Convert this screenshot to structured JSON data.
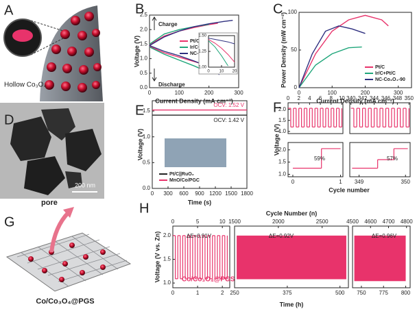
{
  "figure": {
    "A": {
      "label": "A",
      "caption": "Hollow Co₃O₄"
    },
    "D": {
      "label": "D",
      "scale_bar": "200 nm"
    },
    "G": {
      "label": "G",
      "annotation": "pore",
      "caption": "Co/Co₃O₄@PGS"
    }
  },
  "chart_data": [
    {
      "type": "line",
      "label": "B",
      "xlabel": "Current Density (mA cm⁻²)",
      "ylabel": "Voltage (V)",
      "xlim": [
        0,
        300
      ],
      "ylim": [
        0,
        2.5
      ],
      "xticks": [
        0,
        100,
        200,
        300
      ],
      "yticks": [
        {
          "value": 0,
          "label": "0.0"
        },
        0.5,
        {
          "value": 1,
          "label": "1.0"
        },
        1.5,
        {
          "value": 2,
          "label": "2.0"
        },
        2.5
      ],
      "annotations": [
        "Charge",
        "Discharge"
      ],
      "series": [
        {
          "name": "Pt/C",
          "color": "#e8336b",
          "x": [
            0,
            50,
            100,
            150,
            200,
            230,
            null,
            0,
            50,
            100,
            150,
            200,
            250,
            265
          ],
          "values": [
            1.48,
            1.78,
            1.95,
            2.07,
            2.17,
            2.22,
            null,
            1.42,
            1.2,
            1.05,
            0.9,
            0.75,
            0.6,
            0.55
          ]
        },
        {
          "name": "Ir/C+Pt/C",
          "color": "#1fa67a",
          "x": [
            0,
            50,
            100,
            150,
            200,
            null,
            0,
            50,
            100,
            150,
            195
          ],
          "values": [
            1.5,
            1.85,
            2.0,
            2.1,
            2.18,
            null,
            1.4,
            1.15,
            0.95,
            0.75,
            0.55
          ]
        },
        {
          "name": "NC-Co₃O₄-90",
          "color": "#2e2f7f",
          "x": [
            0,
            50,
            100,
            150,
            200,
            250,
            280,
            null,
            0,
            50,
            100,
            150,
            200,
            235
          ],
          "values": [
            1.45,
            1.75,
            1.95,
            2.1,
            2.2,
            2.28,
            2.32,
            null,
            1.45,
            1.25,
            1.1,
            0.92,
            0.72,
            0.45
          ]
        }
      ]
    },
    {
      "type": "line",
      "xlim": [
        0,
        20
      ],
      "ylim": [
        1.0,
        1.5
      ],
      "xticks": [
        0,
        10,
        20
      ],
      "yticks": [
        {
          "value": 1,
          "label": "1.00"
        },
        1.25,
        {
          "value": 1.5,
          "label": "1.50"
        }
      ],
      "series": [
        {
          "color": "#2e2f7f",
          "x": [
            0,
            5,
            10,
            15,
            20
          ],
          "values": [
            1.46,
            1.44,
            1.42,
            1.4,
            1.37
          ]
        },
        {
          "color": "#e8336b",
          "x": [
            0,
            5,
            10,
            15,
            20
          ],
          "values": [
            1.44,
            1.38,
            1.3,
            1.2,
            1.08
          ]
        },
        {
          "color": "#1fa67a",
          "x": [
            0,
            5,
            10,
            15
          ],
          "values": [
            1.42,
            1.32,
            1.18,
            1.02
          ]
        }
      ]
    },
    {
      "type": "line",
      "label": "C",
      "xlabel": "Current Density (mA cm⁻²)",
      "ylabel": "Power Density (mW cm⁻²)",
      "xlim": [
        0,
        340
      ],
      "ylim": [
        0,
        100
      ],
      "xticks": [
        0,
        100,
        200,
        300
      ],
      "yticks": [
        0,
        50,
        100
      ],
      "series": [
        {
          "name": "Pt/C",
          "color": "#e8336b",
          "x": [
            0,
            50,
            100,
            150,
            200,
            250,
            270
          ],
          "values": [
            0,
            45,
            75,
            90,
            96,
            90,
            82
          ]
        },
        {
          "name": "Ir/C+Pt/C",
          "color": "#1fa67a",
          "x": [
            0,
            50,
            100,
            150,
            190
          ],
          "values": [
            0,
            30,
            45,
            53,
            54
          ]
        },
        {
          "name": "NC-Co₃O₄-90",
          "color": "#2e2f7f",
          "x": [
            0,
            40,
            80,
            120,
            160,
            200
          ],
          "values": [
            0,
            45,
            75,
            82,
            78,
            72
          ]
        }
      ]
    },
    {
      "type": "line",
      "label": "E",
      "xlabel": "Time (s)",
      "ylabel": "Voltage (V)",
      "xlim": [
        0,
        1800
      ],
      "ylim": [
        0,
        1.7
      ],
      "xticks": [
        0,
        300,
        600,
        900,
        1200,
        1500,
        1800
      ],
      "yticks": [
        {
          "value": 0,
          "label": "0.0"
        },
        0.5,
        {
          "value": 1,
          "label": "1.0"
        },
        1.5
      ],
      "annotations": [
        "OCV: 1.52 V",
        "OCV: 1.42 V"
      ],
      "series": [
        {
          "name": "Pt/C||RuO₂",
          "color": "#222222",
          "x": [
            0,
            1800
          ],
          "values": [
            1.42,
            1.42
          ]
        },
        {
          "name": "MnO/Co/PGC",
          "color": "#e8336b",
          "x": [
            0,
            1800
          ],
          "values": [
            1.52,
            1.52
          ]
        }
      ]
    },
    {
      "type": "step",
      "label": "F",
      "ylabel": "Voltage (V)",
      "xlim": [
        0,
        10.2
      ],
      "ylim": [
        0.9,
        2.3
      ],
      "xticks": [
        0,
        2,
        4,
        6,
        8,
        10
      ],
      "yticks": [
        {
          "value": 1,
          "label": "1.0"
        },
        1.5,
        {
          "value": 2,
          "label": "2.0"
        }
      ],
      "series": [
        {
          "color": "#e8336b",
          "x": [
            0,
            0.5,
            1,
            1.5,
            2,
            2.5,
            3,
            3.5,
            4,
            4.5,
            5,
            5.5,
            6,
            6.5,
            7,
            7.5,
            8,
            8.5,
            9,
            9.5,
            10
          ],
          "values": [
            2.05,
            1.2,
            2.05,
            1.2,
            2.05,
            1.2,
            2.05,
            1.2,
            2.05,
            1.2,
            2.05,
            1.2,
            2.05,
            1.2,
            2.05,
            1.2,
            2.05,
            1.2,
            2.05,
            1.2,
            2.05
          ]
        }
      ]
    },
    {
      "type": "step",
      "xlim": [
        339.8,
        350.2
      ],
      "ylim": [
        0.9,
        2.3
      ],
      "xticks": [
        340,
        342,
        344,
        346,
        348,
        350
      ],
      "series": [
        {
          "color": "#e8336b",
          "x": [
            340,
            340.5,
            341,
            341.5,
            342,
            342.5,
            343,
            343.5,
            344,
            344.5,
            345,
            345.5,
            346,
            346.5,
            347,
            347.5,
            348,
            348.5,
            349,
            349.5,
            350
          ],
          "values": [
            2.05,
            1.2,
            2.05,
            1.2,
            2.05,
            1.2,
            2.05,
            1.2,
            2.05,
            1.2,
            2.05,
            1.2,
            2.05,
            1.2,
            2.05,
            1.2,
            2.05,
            1.2,
            2.05,
            1.2,
            2.05
          ]
        }
      ]
    },
    {
      "type": "step",
      "xlabel": "Cycle number",
      "xlim": [
        -0.1,
        1.05
      ],
      "ylim": [
        0.9,
        2.3
      ],
      "xticks": [
        0,
        1
      ],
      "yticks": [
        {
          "value": 1,
          "label": "1.0"
        },
        1.5,
        {
          "value": 2,
          "label": "2.0"
        }
      ],
      "annotations": [
        "59%"
      ],
      "series": [
        {
          "color": "#e8336b",
          "x": [
            0,
            0.6,
            1.0
          ],
          "values": [
            1.25,
            2.05,
            2.05
          ]
        }
      ]
    },
    {
      "type": "step",
      "xlim": [
        348.8,
        350.1
      ],
      "ylim": [
        0.9,
        2.3
      ],
      "xticks": [
        349,
        350
      ],
      "annotations": [
        "57%"
      ],
      "series": [
        {
          "color": "#e8336b",
          "x": [
            348.85,
            349.4,
            349.75,
            350.05
          ],
          "values": [
            1.25,
            1.6,
            2.05,
            2.05
          ]
        }
      ]
    },
    {
      "type": "step",
      "label": "H",
      "ylabel": "Voltage (V vs. Zn)",
      "xlim": [
        0,
        2.3
      ],
      "ylim": [
        0.9,
        2.2
      ],
      "xticks": [
        0,
        1,
        2
      ],
      "yticks": [
        {
          "value": 1,
          "label": "1.0"
        },
        1.5,
        {
          "value": 2,
          "label": "2.0"
        }
      ],
      "x2lim": [
        0,
        11.5
      ],
      "x2ticks": [
        0,
        5,
        10
      ],
      "annotations": [
        "ΔE=0.91V"
      ],
      "series": [
        {
          "name": "Co/Co₃O₄@PGS",
          "color": "#e8336b",
          "x": [
            0,
            0.1,
            0.2,
            0.3,
            0.4,
            0.5,
            0.6,
            0.7,
            0.8,
            0.9,
            1.0,
            1.1,
            1.2,
            1.3,
            1.4,
            1.5,
            1.6,
            1.7,
            1.8,
            1.9,
            2.0,
            2.1,
            2.2
          ],
          "values": [
            2.0,
            1.09,
            2.0,
            1.09,
            2.0,
            1.09,
            2.0,
            1.09,
            2.0,
            1.09,
            2.0,
            1.09,
            2.0,
            1.09,
            2.0,
            1.09,
            2.0,
            1.09,
            2.0,
            1.09,
            2.0,
            1.09,
            2.0
          ]
        }
      ]
    },
    {
      "type": "band",
      "xlabel": "Time (h)",
      "x2label": "Cycle Number (n)",
      "xlim": [
        250,
        520
      ],
      "ylim": [
        0.9,
        2.2
      ],
      "xticks": [
        250,
        375,
        500
      ],
      "x2lim": [
        1500,
        2800
      ],
      "x2ticks": [
        1500,
        2000,
        2500
      ],
      "annotations": [
        "ΔE=0.92V"
      ],
      "series": [
        {
          "color": "#e8336b",
          "x": [
            255,
            515
          ],
          "values": [
            1.08,
            2.0
          ]
        }
      ]
    },
    {
      "type": "band",
      "xlim": [
        740,
        805
      ],
      "ylim": [
        0.9,
        2.2
      ],
      "xticks": [
        750,
        775,
        800
      ],
      "x2lim": [
        4500,
        4820
      ],
      "x2ticks": [
        4500,
        4600,
        4700,
        4800
      ],
      "annotations": [
        "ΔE=0.96V"
      ],
      "series": [
        {
          "color": "#e8336b",
          "x": [
            742,
            800
          ],
          "values": [
            1.04,
            2.0
          ]
        }
      ]
    }
  ]
}
